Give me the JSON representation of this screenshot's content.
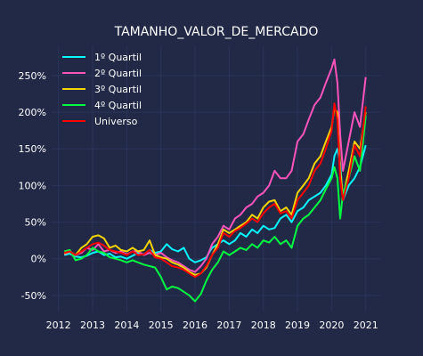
{
  "chart_data": {
    "type": "line",
    "title": "TAMANHO_VALOR_DE_MERCADO",
    "xlabel": "",
    "ylabel": "",
    "x_ticks": [
      "2012",
      "2013",
      "2014",
      "2015",
      "2016",
      "2017",
      "2018",
      "2019",
      "2020",
      "2021"
    ],
    "y_ticks": [
      "-50%",
      "0%",
      "50%",
      "100%",
      "150%",
      "200%",
      "250%"
    ],
    "xlim": [
      2011.8,
      2021.45
    ],
    "ylim": [
      -0.72,
      2.9
    ],
    "grid": true,
    "legend_position": "top-left",
    "series": [
      {
        "name": "1º Quartil",
        "color": "#08F7FE",
        "x": [
          2012.17,
          2012.33,
          2012.5,
          2012.67,
          2012.83,
          2013.0,
          2013.17,
          2013.33,
          2013.5,
          2013.67,
          2013.83,
          2014.0,
          2014.17,
          2014.33,
          2014.5,
          2014.67,
          2014.83,
          2015.0,
          2015.17,
          2015.33,
          2015.5,
          2015.67,
          2015.83,
          2016.0,
          2016.17,
          2016.33,
          2016.5,
          2016.67,
          2016.83,
          2017.0,
          2017.17,
          2017.33,
          2017.5,
          2017.67,
          2017.83,
          2018.0,
          2018.17,
          2018.33,
          2018.5,
          2018.67,
          2018.83,
          2019.0,
          2019.17,
          2019.33,
          2019.5,
          2019.67,
          2019.83,
          2020.0,
          2020.08,
          2020.17,
          2020.25,
          2020.33,
          2020.5,
          2020.67,
          2020.83,
          2021.0
        ],
        "y": [
          0.05,
          0.07,
          0.03,
          0.02,
          0.04,
          0.08,
          0.1,
          0.05,
          0.07,
          0.02,
          0.03,
          0.0,
          0.04,
          0.08,
          0.06,
          0.12,
          0.08,
          0.1,
          0.2,
          0.13,
          0.1,
          0.15,
          0.0,
          -0.05,
          -0.02,
          0.02,
          0.15,
          0.2,
          0.25,
          0.2,
          0.25,
          0.35,
          0.3,
          0.4,
          0.35,
          0.45,
          0.4,
          0.42,
          0.55,
          0.6,
          0.5,
          0.65,
          0.7,
          0.8,
          0.85,
          0.9,
          1.0,
          1.15,
          1.4,
          1.5,
          1.3,
          0.8,
          1.0,
          1.1,
          1.25,
          1.55
        ]
      },
      {
        "name": "2º Quartil",
        "color": "#FE53BB",
        "x": [
          2012.17,
          2012.33,
          2012.5,
          2012.67,
          2012.83,
          2013.0,
          2013.17,
          2013.33,
          2013.5,
          2013.67,
          2013.83,
          2014.0,
          2014.17,
          2014.33,
          2014.5,
          2014.67,
          2014.83,
          2015.0,
          2015.17,
          2015.33,
          2015.5,
          2015.67,
          2015.83,
          2016.0,
          2016.17,
          2016.33,
          2016.5,
          2016.67,
          2016.83,
          2017.0,
          2017.17,
          2017.33,
          2017.5,
          2017.67,
          2017.83,
          2018.0,
          2018.17,
          2018.33,
          2018.5,
          2018.67,
          2018.83,
          2019.0,
          2019.17,
          2019.33,
          2019.5,
          2019.67,
          2019.83,
          2020.0,
          2020.08,
          2020.17,
          2020.25,
          2020.33,
          2020.5,
          2020.67,
          2020.83,
          2021.0
        ],
        "y": [
          0.06,
          0.1,
          0.05,
          0.08,
          0.15,
          0.12,
          0.2,
          0.1,
          0.12,
          0.08,
          0.1,
          0.06,
          0.1,
          0.1,
          0.05,
          0.08,
          0.05,
          0.08,
          0.02,
          -0.02,
          -0.05,
          -0.1,
          -0.15,
          -0.18,
          -0.1,
          0.0,
          0.2,
          0.3,
          0.45,
          0.4,
          0.55,
          0.6,
          0.7,
          0.75,
          0.85,
          0.9,
          1.0,
          1.2,
          1.1,
          1.1,
          1.2,
          1.6,
          1.7,
          1.9,
          2.1,
          2.2,
          2.4,
          2.6,
          2.72,
          2.4,
          1.7,
          1.2,
          1.6,
          2.0,
          1.8,
          2.48
        ]
      },
      {
        "name": "3º Quartil",
        "color": "#F5D300",
        "x": [
          2012.17,
          2012.33,
          2012.5,
          2012.67,
          2012.83,
          2013.0,
          2013.17,
          2013.33,
          2013.5,
          2013.67,
          2013.83,
          2014.0,
          2014.17,
          2014.33,
          2014.5,
          2014.67,
          2014.83,
          2015.0,
          2015.17,
          2015.33,
          2015.5,
          2015.67,
          2015.83,
          2016.0,
          2016.17,
          2016.33,
          2016.5,
          2016.67,
          2016.83,
          2017.0,
          2017.17,
          2017.33,
          2017.5,
          2017.67,
          2017.83,
          2018.0,
          2018.17,
          2018.33,
          2018.5,
          2018.67,
          2018.83,
          2019.0,
          2019.17,
          2019.33,
          2019.5,
          2019.67,
          2019.83,
          2020.0,
          2020.08,
          2020.17,
          2020.25,
          2020.33,
          2020.5,
          2020.67,
          2020.83,
          2021.0
        ],
        "y": [
          0.07,
          0.1,
          0.05,
          0.15,
          0.2,
          0.3,
          0.32,
          0.28,
          0.15,
          0.18,
          0.12,
          0.1,
          0.15,
          0.1,
          0.12,
          0.25,
          0.05,
          0.02,
          0.0,
          -0.05,
          -0.08,
          -0.12,
          -0.18,
          -0.22,
          -0.2,
          -0.12,
          0.05,
          0.2,
          0.4,
          0.35,
          0.4,
          0.45,
          0.5,
          0.6,
          0.55,
          0.7,
          0.78,
          0.8,
          0.65,
          0.7,
          0.6,
          0.9,
          1.0,
          1.1,
          1.3,
          1.4,
          1.6,
          1.8,
          2.05,
          2.0,
          1.2,
          0.85,
          1.2,
          1.6,
          1.5,
          2.0
        ]
      },
      {
        "name": "4º Quartil",
        "color": "#00ff41",
        "x": [
          2012.17,
          2012.33,
          2012.5,
          2012.67,
          2012.83,
          2013.0,
          2013.17,
          2013.33,
          2013.5,
          2013.67,
          2013.83,
          2014.0,
          2014.17,
          2014.33,
          2014.5,
          2014.67,
          2014.83,
          2015.0,
          2015.17,
          2015.33,
          2015.5,
          2015.67,
          2015.83,
          2016.0,
          2016.17,
          2016.33,
          2016.5,
          2016.67,
          2016.83,
          2017.0,
          2017.17,
          2017.33,
          2017.5,
          2017.67,
          2017.83,
          2018.0,
          2018.17,
          2018.33,
          2018.5,
          2018.67,
          2018.83,
          2019.0,
          2019.17,
          2019.33,
          2019.5,
          2019.67,
          2019.83,
          2020.0,
          2020.08,
          2020.17,
          2020.25,
          2020.33,
          2020.5,
          2020.67,
          2020.83,
          2021.0
        ],
        "y": [
          0.1,
          0.12,
          -0.02,
          0.0,
          0.05,
          0.15,
          0.1,
          0.08,
          0.02,
          0.0,
          -0.02,
          -0.05,
          -0.02,
          -0.05,
          -0.08,
          -0.1,
          -0.12,
          -0.25,
          -0.42,
          -0.38,
          -0.4,
          -0.45,
          -0.5,
          -0.58,
          -0.48,
          -0.3,
          -0.15,
          -0.05,
          0.1,
          0.05,
          0.1,
          0.15,
          0.12,
          0.2,
          0.15,
          0.25,
          0.22,
          0.3,
          0.2,
          0.25,
          0.15,
          0.45,
          0.55,
          0.6,
          0.7,
          0.8,
          0.95,
          1.1,
          1.25,
          1.1,
          0.55,
          0.9,
          1.1,
          1.4,
          1.2,
          1.95
        ]
      },
      {
        "name": "Universo",
        "color": "#FF0000",
        "x": [
          2012.17,
          2012.33,
          2012.5,
          2012.67,
          2012.83,
          2013.0,
          2013.17,
          2013.33,
          2013.5,
          2013.67,
          2013.83,
          2014.0,
          2014.17,
          2014.33,
          2014.5,
          2014.67,
          2014.83,
          2015.0,
          2015.17,
          2015.33,
          2015.5,
          2015.67,
          2015.83,
          2016.0,
          2016.17,
          2016.33,
          2016.5,
          2016.67,
          2016.83,
          2017.0,
          2017.17,
          2017.33,
          2017.5,
          2017.67,
          2017.83,
          2018.0,
          2018.17,
          2018.33,
          2018.5,
          2018.67,
          2018.83,
          2019.0,
          2019.17,
          2019.33,
          2019.5,
          2019.67,
          2019.83,
          2020.0,
          2020.08,
          2020.17,
          2020.25,
          2020.33,
          2020.5,
          2020.67,
          2020.83,
          2021.0
        ],
        "y": [
          0.08,
          0.1,
          0.05,
          0.1,
          0.15,
          0.2,
          0.22,
          0.18,
          0.12,
          0.1,
          0.08,
          0.05,
          0.1,
          0.05,
          0.06,
          0.12,
          0.02,
          0.0,
          -0.05,
          -0.1,
          -0.12,
          -0.15,
          -0.2,
          -0.25,
          -0.2,
          -0.1,
          0.05,
          0.15,
          0.35,
          0.3,
          0.38,
          0.42,
          0.48,
          0.55,
          0.5,
          0.62,
          0.7,
          0.75,
          0.62,
          0.65,
          0.55,
          0.8,
          0.9,
          1.0,
          1.2,
          1.3,
          1.5,
          1.75,
          2.12,
          1.9,
          1.1,
          0.8,
          1.1,
          1.55,
          1.4,
          2.08
        ]
      }
    ]
  }
}
